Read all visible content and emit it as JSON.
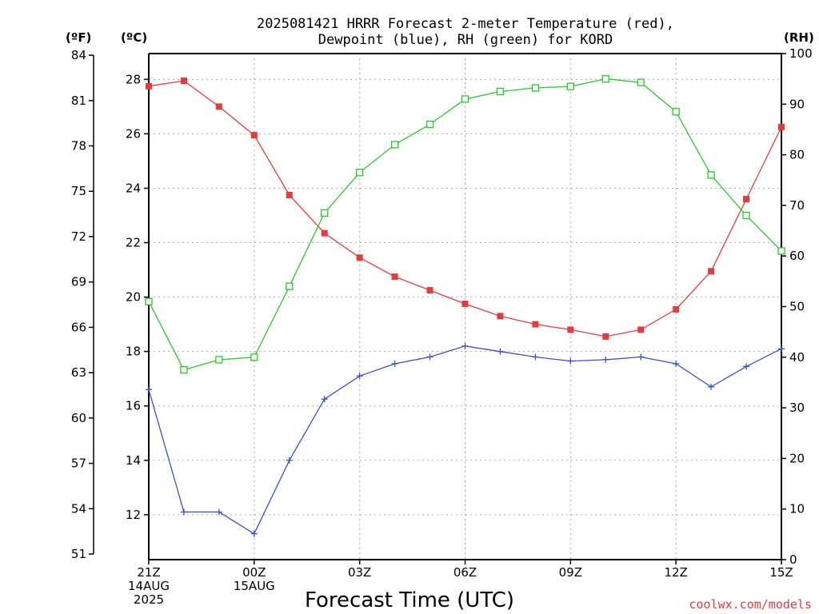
{
  "chart_data": {
    "type": "line",
    "title_line1": "2025081421 HRRR Forecast 2-meter Temperature (red),",
    "title_line2": "Dewpoint (blue), RH (green) for KORD",
    "xlabel": "Forecast Time (UTC)",
    "credit": "coolwx.com/models",
    "left_outer_unit": "(ºF)",
    "left_inner_unit": "(ºC)",
    "right_unit": "(RH)",
    "x_hours": [
      0,
      1,
      2,
      3,
      4,
      5,
      6,
      7,
      8,
      9,
      10,
      11,
      12,
      13,
      14,
      15,
      16,
      17,
      18
    ],
    "x_ticks": [
      {
        "h": 0,
        "lines": [
          "21Z",
          "14AUG",
          "2025"
        ]
      },
      {
        "h": 3,
        "lines": [
          "00Z",
          "15AUG"
        ]
      },
      {
        "h": 6,
        "lines": [
          "03Z"
        ]
      },
      {
        "h": 9,
        "lines": [
          "06Z"
        ]
      },
      {
        "h": 12,
        "lines": [
          "09Z"
        ]
      },
      {
        "h": 15,
        "lines": [
          "12Z"
        ]
      },
      {
        "h": 18,
        "lines": [
          "15Z"
        ]
      }
    ],
    "celsius_ticks": [
      12,
      14,
      16,
      18,
      20,
      22,
      24,
      26,
      28
    ],
    "celsius_range": [
      10.35,
      28.95
    ],
    "fahrenheit_ticks": [
      51,
      54,
      57,
      60,
      63,
      66,
      69,
      72,
      75,
      78,
      81,
      84
    ],
    "rh_ticks": [
      0,
      10,
      20,
      30,
      40,
      50,
      60,
      70,
      80,
      90,
      100
    ],
    "rh_range": [
      0,
      100
    ],
    "series": [
      {
        "name": "Temperature",
        "color": "#e8393b",
        "marker": "filled-square",
        "unit": "C",
        "values": [
          27.75,
          27.95,
          27.0,
          25.95,
          23.75,
          22.35,
          21.45,
          20.75,
          20.25,
          19.75,
          19.3,
          19.0,
          18.8,
          18.55,
          18.8,
          19.55,
          20.95,
          23.6,
          26.25
        ]
      },
      {
        "name": "Dewpoint",
        "color": "#3a4fd8",
        "marker": "plus",
        "unit": "C",
        "values": [
          16.6,
          12.1,
          12.1,
          11.3,
          14.0,
          16.25,
          17.1,
          17.55,
          17.8,
          18.2,
          18.0,
          17.8,
          17.65,
          17.7,
          17.8,
          17.55,
          16.7,
          17.45,
          18.1
        ]
      },
      {
        "name": "RH",
        "color": "#22cc22",
        "marker": "open-square",
        "unit": "%",
        "values": [
          51,
          37.5,
          39.5,
          40,
          54,
          68.5,
          76.5,
          82,
          86,
          91,
          92.5,
          93.2,
          93.5,
          95,
          94.3,
          88.5,
          76,
          68,
          61
        ]
      }
    ]
  }
}
